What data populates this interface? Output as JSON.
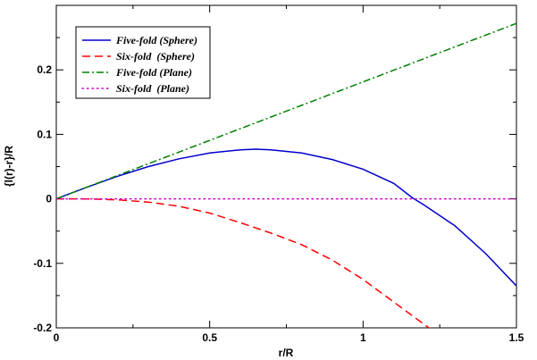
{
  "chart_data": {
    "type": "line",
    "title": "",
    "xlabel": "r/R",
    "ylabel": "{l(r)-r}/R",
    "xlim": [
      0,
      1.5
    ],
    "ylim": [
      -0.2,
      0.3
    ],
    "x_ticks": [
      "0",
      "0.5",
      "1",
      "1.5"
    ],
    "y_ticks": [
      "-0.2",
      "-0.1",
      "0",
      "0.1",
      "0.2"
    ],
    "grid": false,
    "legend_position": "top-left",
    "series": [
      {
        "name": "Five-fold (Sphere)",
        "color": "#0000cc",
        "style": "solid",
        "x": [
          0,
          0.1,
          0.2,
          0.3,
          0.4,
          0.5,
          0.6,
          0.65,
          0.7,
          0.8,
          0.9,
          1.0,
          1.1,
          1.16,
          1.2,
          1.3,
          1.4,
          1.5
        ],
        "y": [
          0,
          0.018,
          0.035,
          0.05,
          0.062,
          0.071,
          0.076,
          0.077,
          0.076,
          0.071,
          0.061,
          0.046,
          0.024,
          0.002,
          -0.01,
          -0.042,
          -0.085,
          -0.135
        ]
      },
      {
        "name": "Six-fold  (Sphere)",
        "color": "#ff0000",
        "style": "dashed",
        "x": [
          0,
          0.1,
          0.2,
          0.3,
          0.4,
          0.5,
          0.6,
          0.7,
          0.8,
          0.9,
          1.0,
          1.1,
          1.2,
          1.23
        ],
        "y": [
          0,
          -0.0002,
          -0.0015,
          -0.005,
          -0.0115,
          -0.022,
          -0.037,
          -0.053,
          -0.071,
          -0.095,
          -0.125,
          -0.16,
          -0.195,
          -0.205
        ]
      },
      {
        "name": "Five-fold (Plane)",
        "color": "#008000",
        "style": "dashdot",
        "x": [
          0,
          1.5
        ],
        "y": [
          0,
          0.272
        ]
      },
      {
        "name": "Six-fold  (Plane)",
        "color": "#cc00cc",
        "style": "dotted",
        "x": [
          0,
          1.5
        ],
        "y": [
          0,
          0
        ]
      }
    ]
  }
}
